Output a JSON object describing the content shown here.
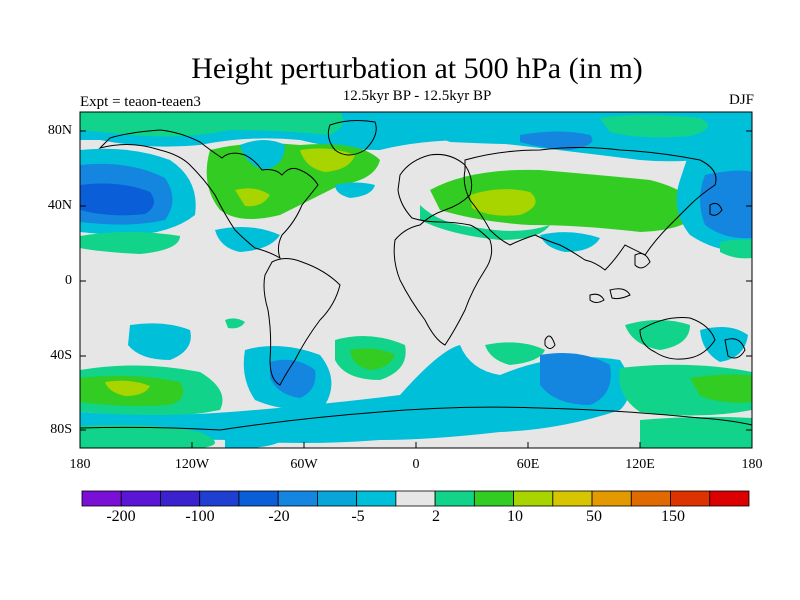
{
  "title": "Height perturbation at 500 hPa (in m)",
  "subtitle": "12.5kyr BP - 12.5kyr BP",
  "left_label": "Expt = teaon-teaen3",
  "right_label": "DJF",
  "lat_labels": [
    "80N",
    "40N",
    "0",
    "40S",
    "80S"
  ],
  "lon_labels": [
    "180",
    "120W",
    "60W",
    "0",
    "60E",
    "120E",
    "180"
  ],
  "colorbar": {
    "labels": [
      "-200",
      "-100",
      "-20",
      "-5",
      "2",
      "10",
      "50",
      "150"
    ],
    "colors": [
      "#7a0fd6",
      "#5a16d4",
      "#3c22cf",
      "#1e3fd0",
      "#0a5fd8",
      "#1486e0",
      "#08a6d8",
      "#00bfd9",
      "#e6e6e6",
      "#11d48a",
      "#33cc22",
      "#a8d400",
      "#d6c500",
      "#e29a00",
      "#e06a00",
      "#dd3300",
      "#dd0000"
    ]
  },
  "map_colors": {
    "background": "#e6e6e6",
    "lightblue": "#00bfd9",
    "blue": "#1486e0",
    "darkblue": "#0a5fd8",
    "lightgreen": "#11d48a",
    "green": "#33cc22",
    "yellowgreen": "#a8d400"
  }
}
